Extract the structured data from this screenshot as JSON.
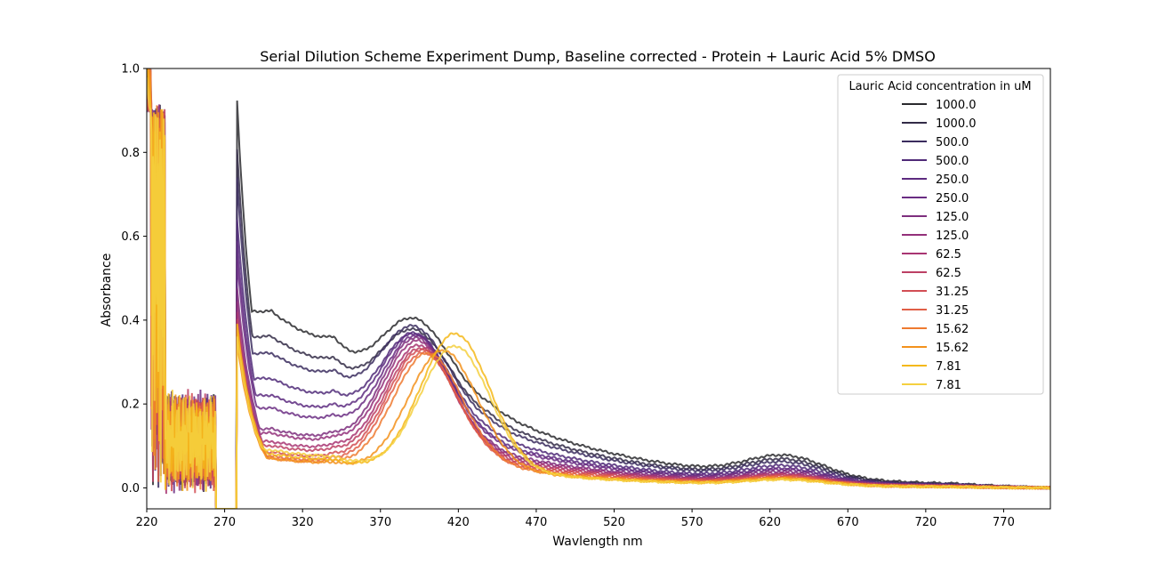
{
  "chart_data": {
    "type": "line",
    "title": "Serial Dilution Scheme Experiment Dump, Baseline corrected - Protein + Lauric Acid 5% DMSO",
    "xlabel": "Wavlength nm",
    "ylabel": "Absorbance",
    "xlim": [
      220,
      800
    ],
    "ylim": [
      -0.05,
      1.0
    ],
    "xticks": [
      "220",
      "270",
      "320",
      "370",
      "420",
      "470",
      "520",
      "570",
      "620",
      "670",
      "720",
      "770"
    ],
    "yticks": [
      "0.0",
      "0.2",
      "0.4",
      "0.6",
      "0.8",
      "1.0"
    ],
    "grid": false,
    "legend": {
      "title": "Lauric Acid concentration in uM",
      "placement": "top-right"
    },
    "series": [
      {
        "name": "1000.0",
        "color": "#2a2a2e",
        "p": 0.56,
        "u": 0.42,
        "s": 0.66,
        "t": 0.15,
        "v": 0.05,
        "peakX": 390
      },
      {
        "name": "1000.0",
        "color": "#332b47",
        "p": 0.51,
        "u": 0.36,
        "s": 0.58,
        "t": 0.13,
        "v": 0.045,
        "peakX": 390
      },
      {
        "name": "500.0",
        "color": "#3a2c5e",
        "p": 0.5,
        "u": 0.32,
        "s": 0.53,
        "t": 0.12,
        "v": 0.04,
        "peakX": 390
      },
      {
        "name": "500.0",
        "color": "#4f2a78",
        "p": 0.46,
        "u": 0.26,
        "s": 0.46,
        "t": 0.1,
        "v": 0.035,
        "peakX": 391
      },
      {
        "name": "250.0",
        "color": "#5d2b80",
        "p": 0.44,
        "u": 0.22,
        "s": 0.42,
        "t": 0.09,
        "v": 0.03,
        "peakX": 391
      },
      {
        "name": "250.0",
        "color": "#6a2d83",
        "p": 0.42,
        "u": 0.19,
        "s": 0.39,
        "t": 0.085,
        "v": 0.028,
        "peakX": 392
      },
      {
        "name": "125.0",
        "color": "#7e2f7e",
        "p": 0.39,
        "u": 0.14,
        "s": 0.34,
        "t": 0.075,
        "v": 0.025,
        "peakX": 392
      },
      {
        "name": "125.0",
        "color": "#93307a",
        "p": 0.38,
        "u": 0.13,
        "s": 0.32,
        "t": 0.07,
        "v": 0.022,
        "peakX": 393
      },
      {
        "name": "62.5",
        "color": "#a83572",
        "p": 0.36,
        "u": 0.11,
        "s": 0.3,
        "t": 0.065,
        "v": 0.02,
        "peakX": 394
      },
      {
        "name": "62.5",
        "color": "#bc4064",
        "p": 0.35,
        "u": 0.1,
        "s": 0.29,
        "t": 0.06,
        "v": 0.02,
        "peakX": 395
      },
      {
        "name": "31.25",
        "color": "#d24e55",
        "p": 0.34,
        "u": 0.085,
        "s": 0.28,
        "t": 0.055,
        "v": 0.018,
        "peakX": 396
      },
      {
        "name": "31.25",
        "color": "#e15e46",
        "p": 0.33,
        "u": 0.075,
        "s": 0.27,
        "t": 0.05,
        "v": 0.017,
        "peakX": 397
      },
      {
        "name": "15.62",
        "color": "#ee7a30",
        "p": 0.33,
        "u": 0.07,
        "s": 0.26,
        "t": 0.045,
        "v": 0.016,
        "peakX": 400
      },
      {
        "name": "15.62",
        "color": "#f3921c",
        "p": 0.34,
        "u": 0.07,
        "s": 0.25,
        "t": 0.04,
        "v": 0.015,
        "peakX": 410
      },
      {
        "name": "7.81",
        "color": "#f4b81a",
        "p": 0.39,
        "u": 0.08,
        "s": 0.28,
        "t": 0.038,
        "v": 0.014,
        "peakX": 418
      },
      {
        "name": "7.81",
        "color": "#f5d040",
        "p": 0.37,
        "u": 0.09,
        "s": 0.26,
        "t": 0.036,
        "v": 0.013,
        "peakX": 418
      }
    ]
  }
}
